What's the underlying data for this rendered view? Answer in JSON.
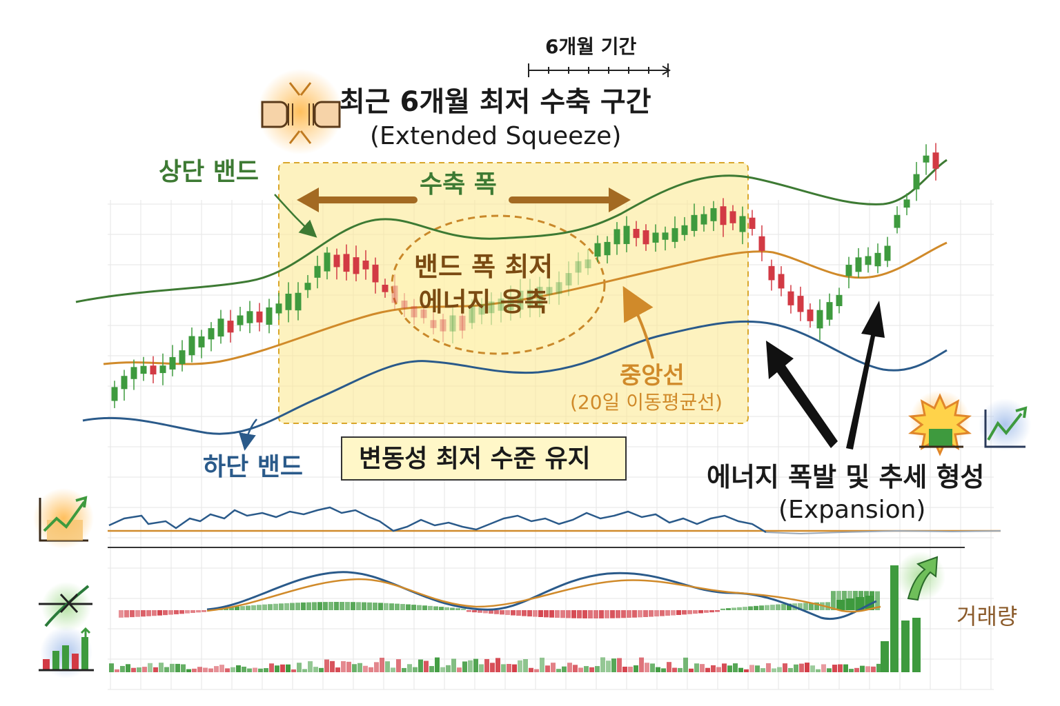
{
  "diagram": {
    "period_label": "6개월 기간",
    "squeeze_title": "최근 6개월 최저 수축 구간",
    "squeeze_subtitle": "(Extended Squeeze)",
    "upper_band_label": "상단 밴드",
    "band_width_label": "수축 폭",
    "energy_label_line1": "밴드 폭 최저",
    "energy_label_line2": "에너지 응축",
    "middle_line_label": "중앙선",
    "middle_line_sub": "(20일 이동평균선)",
    "lower_band_label": "하단 밴드",
    "volatility_box": "변동성 최저 수준 유지",
    "expansion_title": "에너지 폭발 및 추세 형성",
    "expansion_subtitle": "(Expansion)",
    "volume_label": "거래량"
  },
  "colors": {
    "upper_band": "#3d7a33",
    "middle_band": "#d08a2a",
    "lower_band": "#2a5a8a",
    "bull_candle": "#3e9a3e",
    "bear_candle": "#d23a44",
    "squeeze_zone": "#fbe88a",
    "grid": "#e6e6e6"
  },
  "icons": {
    "squeeze": "fists-squeeze-icon",
    "burst": "explosion-icon",
    "trend": "trend-up-icon",
    "indicator": "indicator-chart-icon",
    "crossover": "crossover-icon",
    "volume": "volume-bars-icon",
    "volume_up": "up-arrow-icon"
  }
}
